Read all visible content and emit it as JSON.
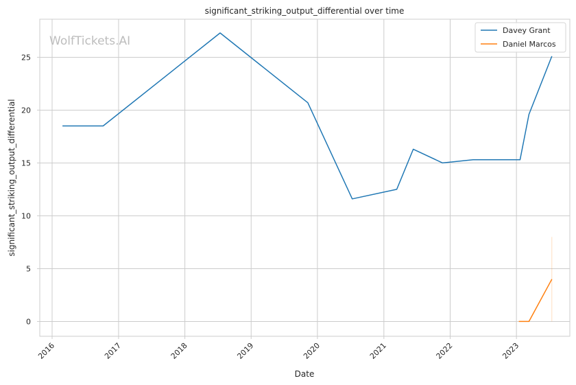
{
  "chart_data": {
    "type": "line",
    "title": "significant_striking_output_differential over time",
    "xlabel": "Date",
    "ylabel": "significant_striking_output_differential",
    "watermark": "WolfTickets.AI",
    "x_ticks": [
      "2016",
      "2017",
      "2018",
      "2019",
      "2020",
      "2021",
      "2022",
      "2023"
    ],
    "y_ticks": [
      "0",
      "5",
      "10",
      "15",
      "20",
      "25"
    ],
    "xlim": [
      "2015-10-25",
      "2023-10-22"
    ],
    "ylim": [
      -1.4,
      28.6
    ],
    "grid": true,
    "legend_position": "top-right",
    "series": [
      {
        "name": "Davey Grant",
        "color": "#1f77b4",
        "points": [
          [
            "2016-02-27",
            18.5
          ],
          [
            "2016-10-08",
            18.5
          ],
          [
            "2018-07-14",
            27.3
          ],
          [
            "2019-11-09",
            20.7
          ],
          [
            "2020-07-11",
            11.6
          ],
          [
            "2021-03-13",
            12.5
          ],
          [
            "2021-06-12",
            16.3
          ],
          [
            "2021-11-20",
            15.0
          ],
          [
            "2022-05-07",
            15.3
          ],
          [
            "2023-01-21",
            15.3
          ],
          [
            "2023-03-11",
            19.6
          ],
          [
            "2023-07-15",
            25.1
          ]
        ]
      },
      {
        "name": "Daniel Marcos",
        "color": "#ff7f0e",
        "points": [
          [
            "2023-01-14",
            0.0
          ],
          [
            "2023-03-11",
            0.0
          ],
          [
            "2023-07-15",
            4.0
          ]
        ],
        "band": {
          "date": "2023-07-15",
          "low": 0.0,
          "high": 8.0
        }
      }
    ]
  }
}
